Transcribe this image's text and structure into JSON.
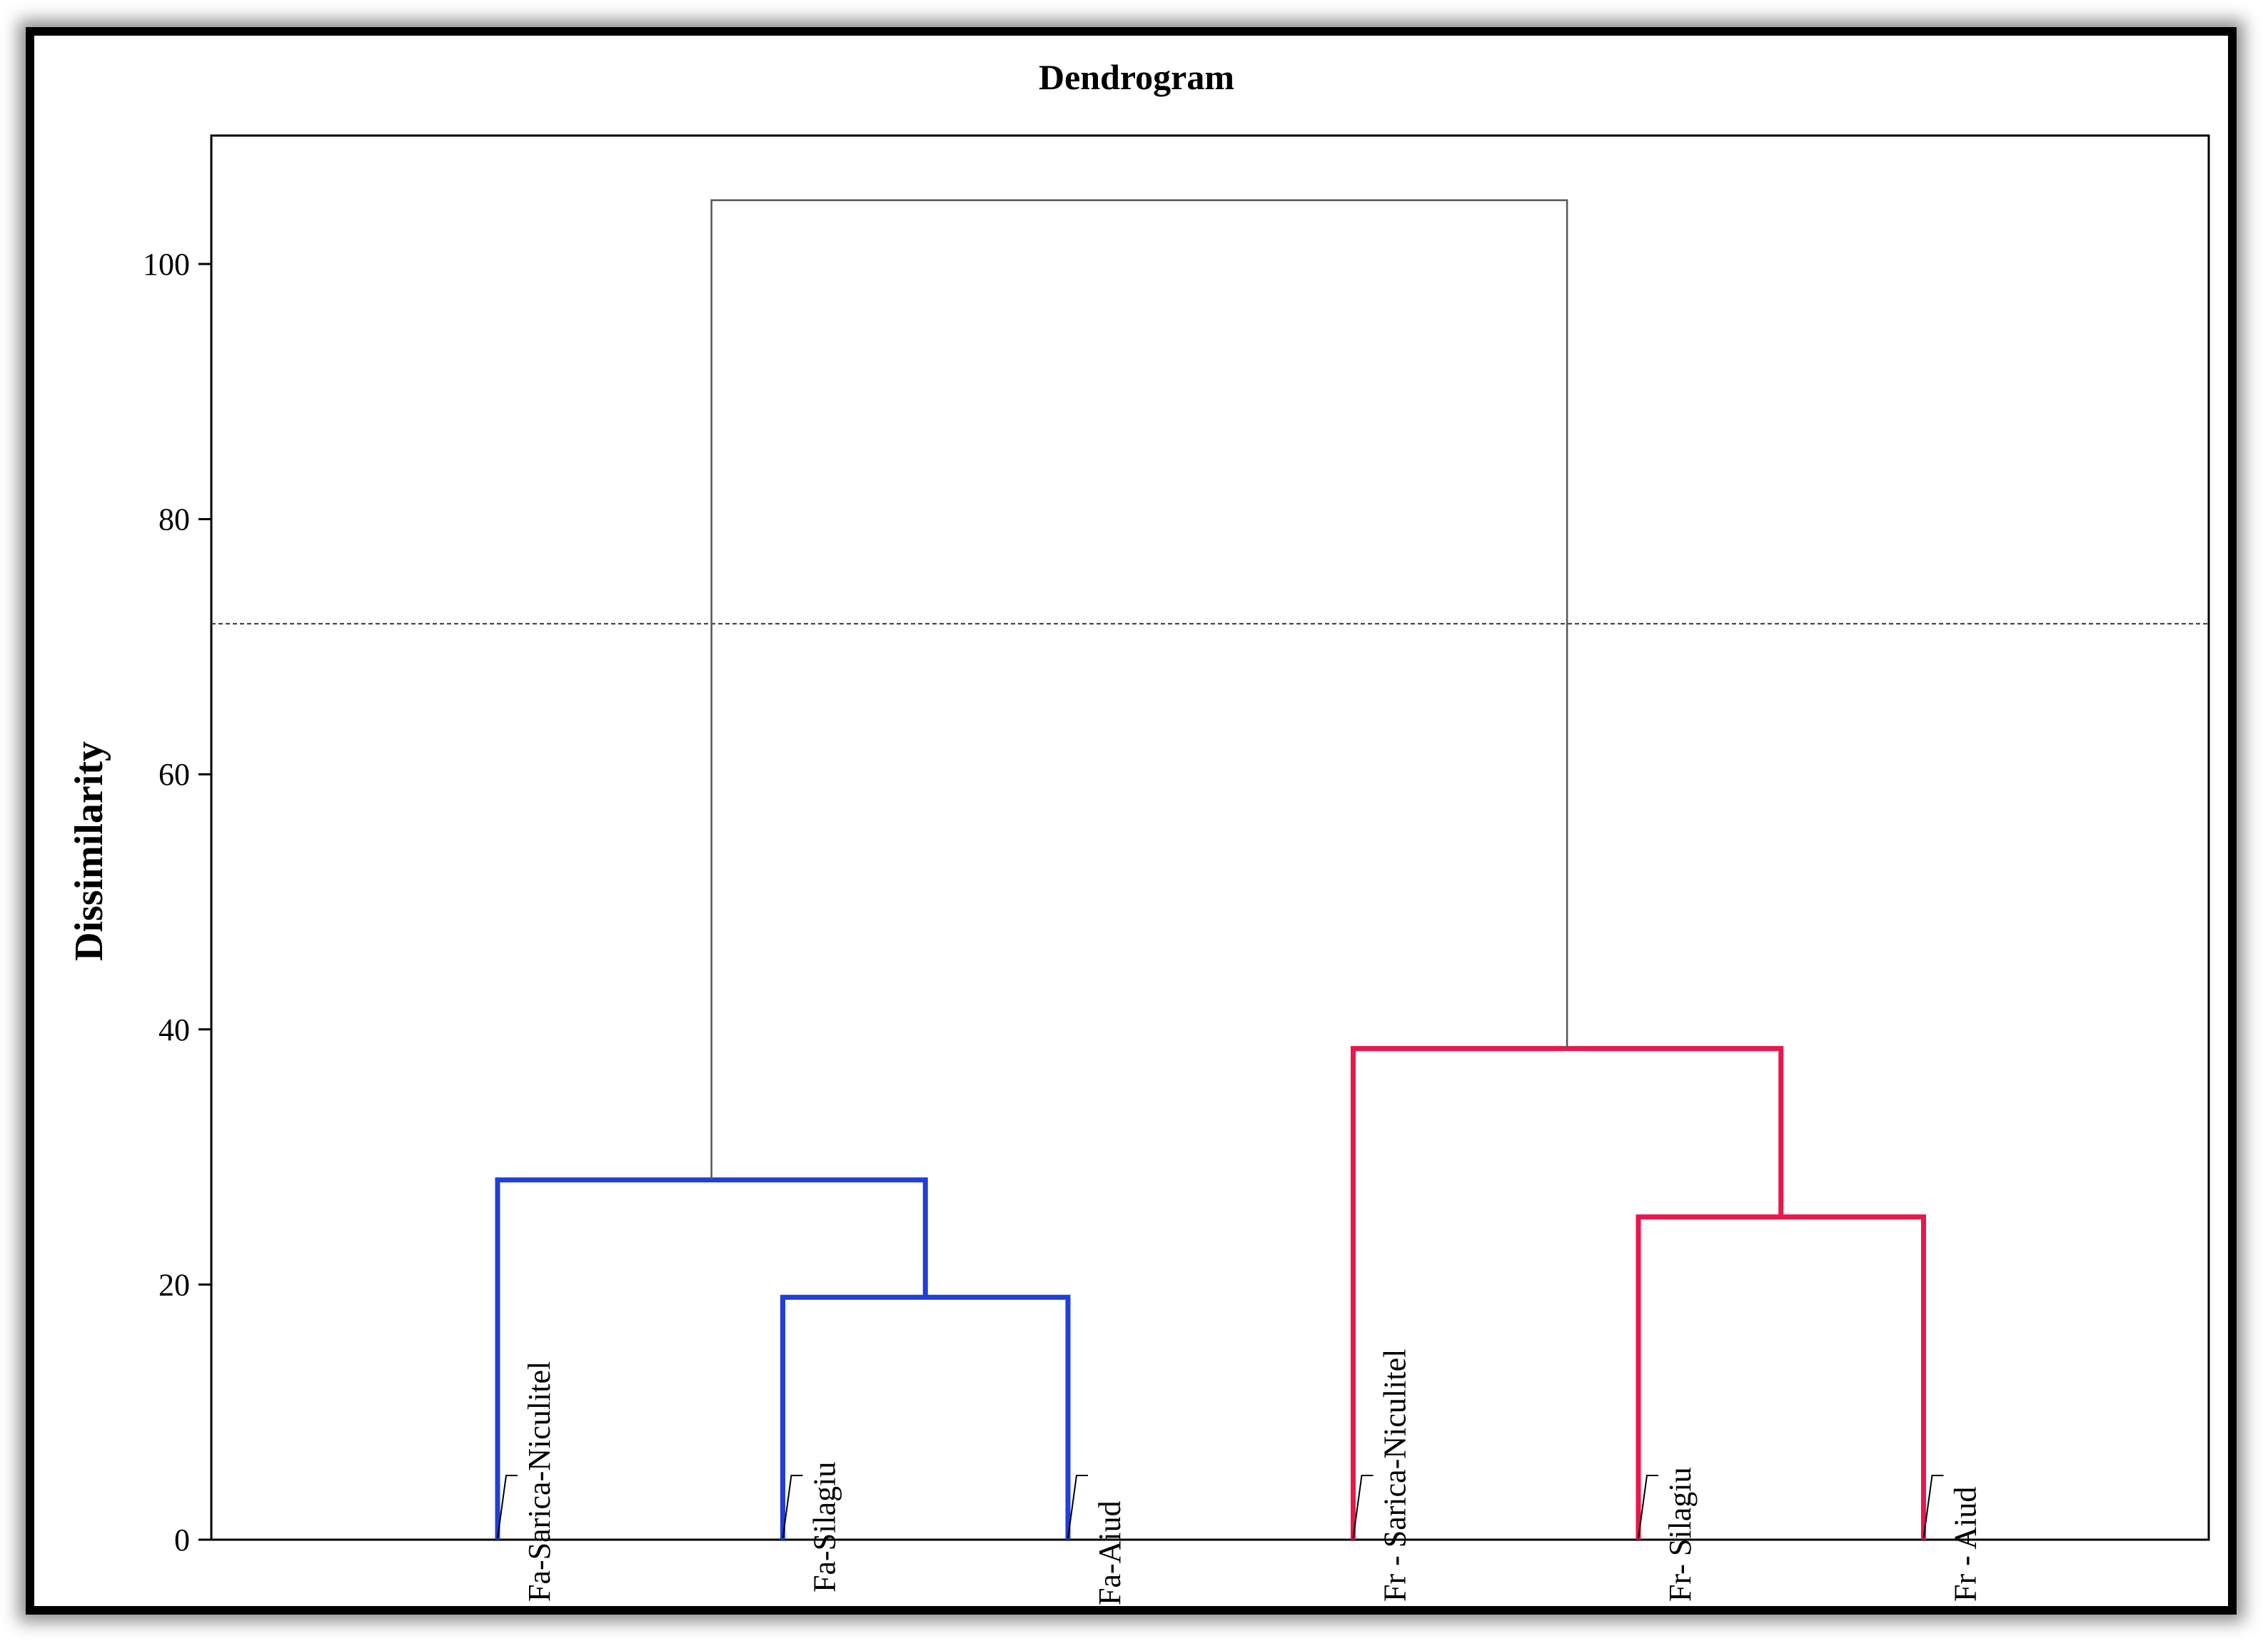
{
  "chart_data": {
    "type": "dendrogram",
    "title": "Dendrogram",
    "ylabel": "Dissimilarity",
    "xlabel": "",
    "ylim": [
      0,
      110
    ],
    "yticks": [
      0,
      20,
      40,
      60,
      80,
      100
    ],
    "grid": false,
    "truncation_line": 71.8,
    "leaves": [
      "Fa-Sarica-Niculitel",
      "Fa-Silagiu",
      "Fa-Aiud",
      "Fr - Sarica-Niculitel",
      "Fr- Silagiu",
      "Fr - Aiud"
    ],
    "merges": [
      {
        "left": "Fa-Silagiu",
        "right": "Fa-Aiud",
        "height": 19.0,
        "cluster": "Fa"
      },
      {
        "left": "Fa-Sarica-Niculitel",
        "right": "Fa-Silagiu + Fa-Aiud",
        "height": 28.2,
        "cluster": "Fa"
      },
      {
        "left": "Fr- Silagiu",
        "right": "Fr - Aiud",
        "height": 25.3,
        "cluster": "Fr"
      },
      {
        "left": "Fr - Sarica-Niculitel",
        "right": "Fr- Silagiu + Fr - Aiud",
        "height": 38.5,
        "cluster": "Fr"
      },
      {
        "left": "Fa cluster",
        "right": "Fr cluster",
        "height": 105.0,
        "cluster": "root"
      }
    ],
    "colors": {
      "Fa": "#1f3fd6",
      "Fr": "#e8174c",
      "root": "#555555",
      "axis": "#000000"
    }
  }
}
